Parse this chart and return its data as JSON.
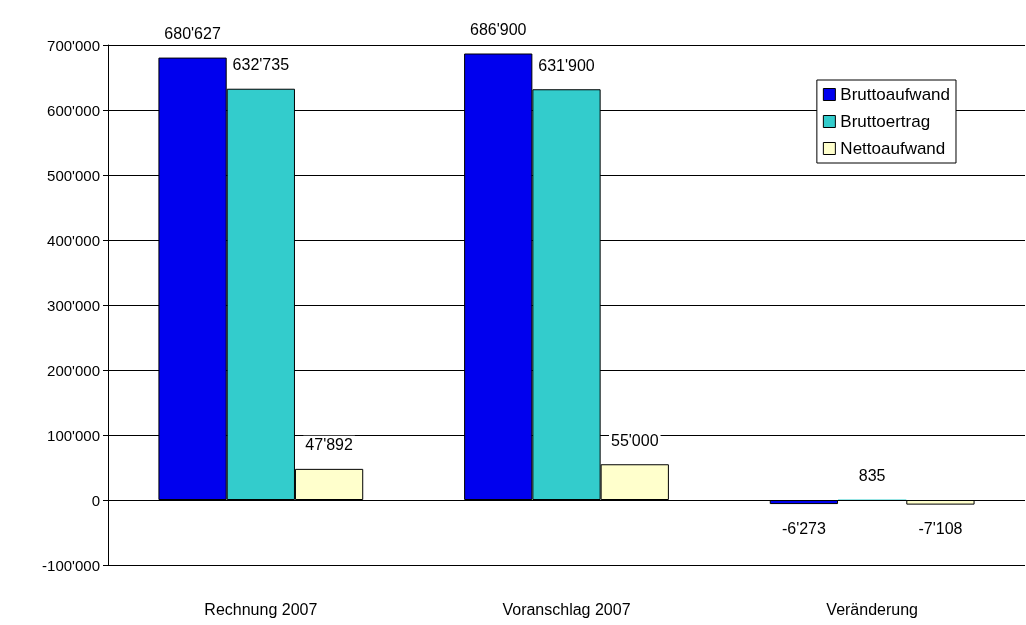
{
  "chart_data": {
    "type": "bar",
    "categories": [
      "Rechnung 2007",
      "Voranschlag 2007",
      "Veränderung"
    ],
    "series": [
      {
        "name": "Bruttoaufwand",
        "color": "#0000ee",
        "values": [
          680627,
          686900,
          -6273
        ],
        "value_labels": [
          "680'627",
          "686'900",
          "-6'273"
        ]
      },
      {
        "name": "Bruttoertrag",
        "color": "#33cccc",
        "values": [
          632735,
          631900,
          835
        ],
        "value_labels": [
          "632'735",
          "631'900",
          "835"
        ]
      },
      {
        "name": "Nettoaufwand",
        "color": "#ffffcc",
        "values": [
          47892,
          55000,
          -7108
        ],
        "value_labels": [
          "47'892",
          "55'000",
          "-7'108"
        ]
      }
    ],
    "ylim": [
      -100000,
      700000
    ],
    "yticks": [
      {
        "value": -100000,
        "label": "-100'000"
      },
      0,
      {
        "value": 100000,
        "label": "100'000"
      },
      {
        "value": 200000,
        "label": "200'000"
      },
      {
        "value": 300000,
        "label": "300'000"
      },
      {
        "value": 400000,
        "label": "400'000"
      },
      {
        "value": 500000,
        "label": "500'000"
      },
      {
        "value": 600000,
        "label": "600'000"
      },
      {
        "value": 700000,
        "label": "700'000"
      }
    ],
    "grid": "y",
    "legend": "top right"
  }
}
